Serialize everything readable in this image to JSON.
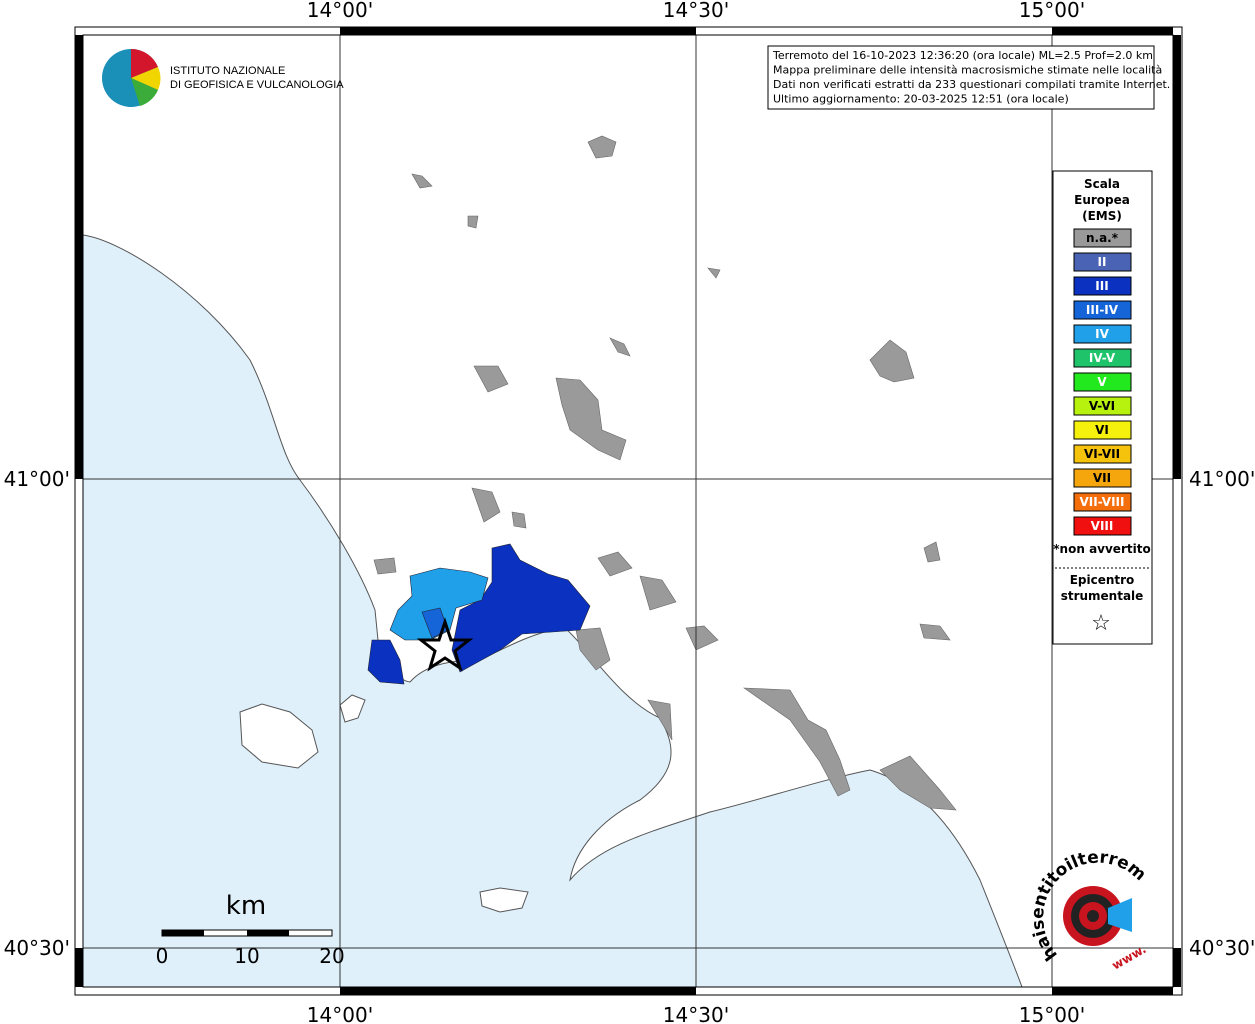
{
  "grid": {
    "lon": [
      "14°00'",
      "14°30'",
      "15°00'"
    ],
    "lat": [
      "41°00'",
      "40°30'"
    ]
  },
  "logo": {
    "line1": "ISTITUTO NAZIONALE",
    "line2": "DI GEOFISICA E VULCANOLOGIA"
  },
  "info": {
    "lines": [
      "Terremoto del 16-10-2023 12:36:20 (ora locale) ML=2.5 Prof=2.0 km",
      "Mappa preliminare delle intensità macrosismiche stimate nelle località",
      "Dati non verificati estratti da 233 questionari compilati tramite Internet.",
      "Ultimo aggiornamento: 20-03-2025 12:51 (ora locale)"
    ]
  },
  "legend": {
    "title": [
      "Scala",
      "Europea",
      "(EMS)"
    ],
    "items": [
      {
        "label": "n.a.*",
        "color": "#999999"
      },
      {
        "label": "II",
        "color": "#4a63b5"
      },
      {
        "label": "III",
        "color": "#0a31bf"
      },
      {
        "label": "III-IV",
        "color": "#1565d8"
      },
      {
        "label": "IV",
        "color": "#1fa0e8"
      },
      {
        "label": "IV-V",
        "color": "#1fc36a"
      },
      {
        "label": "V",
        "color": "#22e81e"
      },
      {
        "label": "V-VI",
        "color": "#b6f20e"
      },
      {
        "label": "VI",
        "color": "#f5f00c"
      },
      {
        "label": "VI-VII",
        "color": "#f5c20c"
      },
      {
        "label": "VII",
        "color": "#f5a60c"
      },
      {
        "label": "VII-VIII",
        "color": "#f56e0c"
      },
      {
        "label": "VIII",
        "color": "#f01010"
      }
    ],
    "note": "*non avvertito",
    "epicenter": [
      "Epicentro",
      "strumentale"
    ],
    "star": "☆"
  },
  "scale": {
    "unit": "km",
    "ticks": [
      "0",
      "10",
      "20"
    ]
  },
  "watermark": {
    "site": "haisentitoilterremoto.it",
    "prefix": "www."
  }
}
